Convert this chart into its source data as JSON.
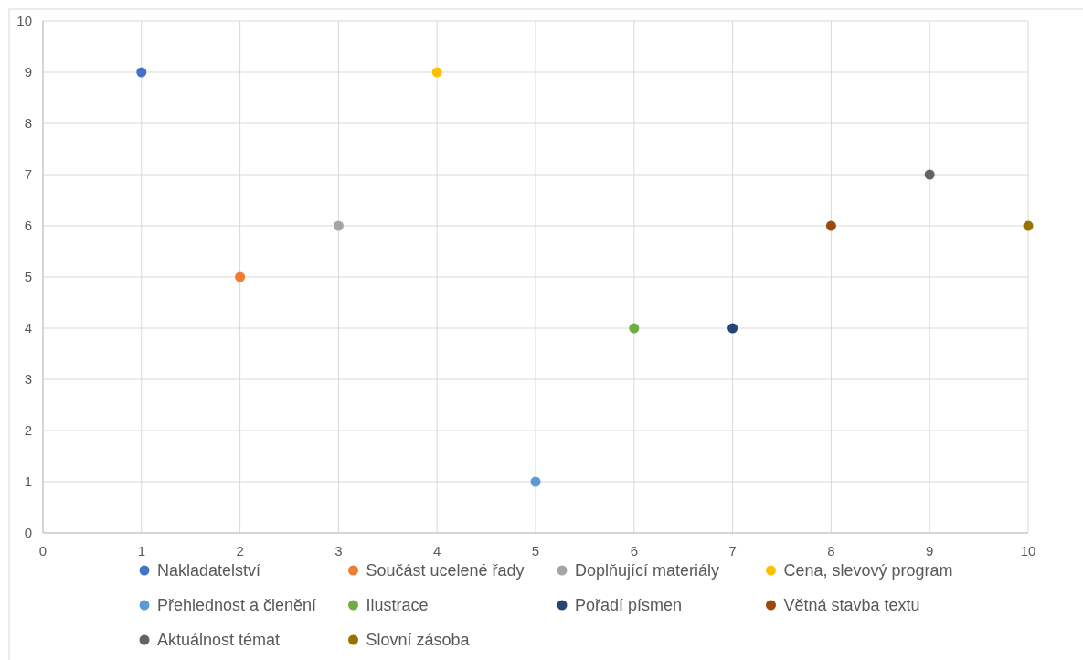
{
  "chart_data": {
    "type": "scatter",
    "xlim": [
      0,
      10
    ],
    "xticks": [
      0,
      1,
      2,
      3,
      4,
      5,
      6,
      7,
      8,
      9,
      10
    ],
    "ylim": [
      0,
      10
    ],
    "yticks": [
      0,
      1,
      2,
      3,
      4,
      5,
      6,
      7,
      8,
      9,
      10
    ],
    "grid": true,
    "legend": "bottom",
    "marker": "circle",
    "series": [
      {
        "name": "Nakladatelství",
        "color": "#4472c4",
        "x": [
          1
        ],
        "values": [
          9
        ]
      },
      {
        "name": "Součást ucelené řady",
        "color": "#ed7d31",
        "x": [
          2
        ],
        "values": [
          5
        ]
      },
      {
        "name": "Doplňující materiály",
        "color": "#a5a5a5",
        "x": [
          3
        ],
        "values": [
          6
        ]
      },
      {
        "name": "Cena, slevový program",
        "color": "#ffc000",
        "x": [
          4
        ],
        "values": [
          9
        ]
      },
      {
        "name": "Přehlednost a členění",
        "color": "#5b9bd5",
        "x": [
          5
        ],
        "values": [
          1
        ]
      },
      {
        "name": "Ilustrace",
        "color": "#70ad47",
        "x": [
          6
        ],
        "values": [
          4
        ]
      },
      {
        "name": "Pořadí písmen",
        "color": "#264478",
        "x": [
          7
        ],
        "values": [
          4
        ]
      },
      {
        "name": "Větná stavba textu",
        "color": "#9e480e",
        "x": [
          8
        ],
        "values": [
          6
        ]
      },
      {
        "name": "Aktuálnost témat",
        "color": "#636363",
        "x": [
          9
        ],
        "values": [
          7
        ]
      },
      {
        "name": "Slovní zásoba",
        "color": "#997300",
        "x": [
          10
        ],
        "values": [
          6
        ]
      }
    ]
  }
}
